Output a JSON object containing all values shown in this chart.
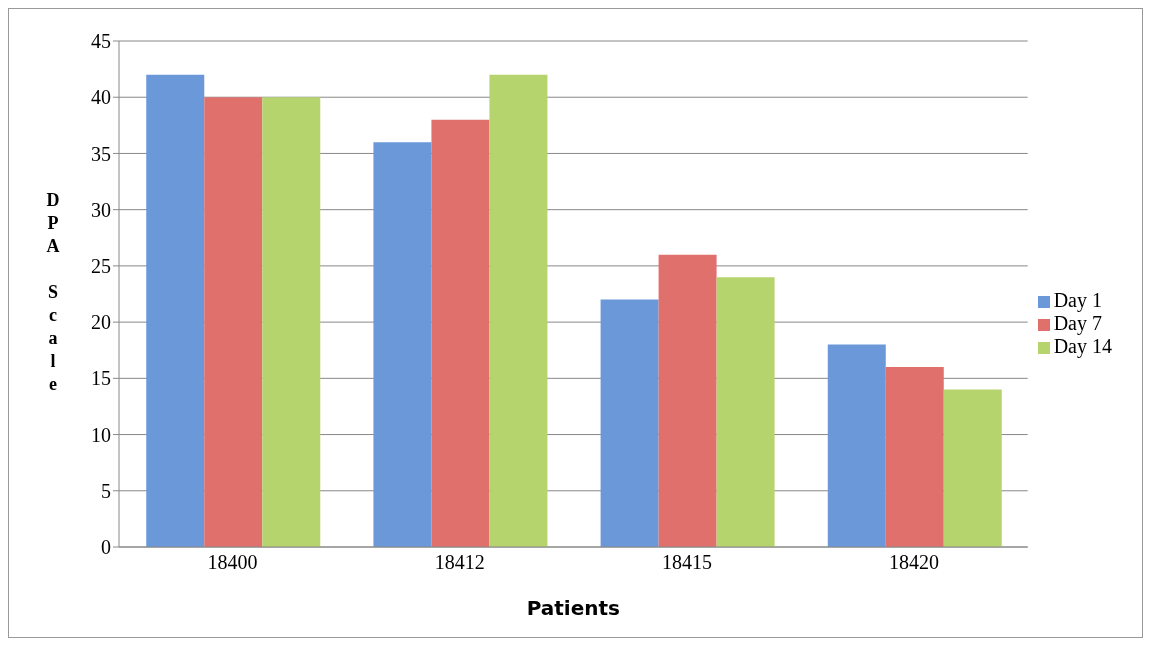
{
  "chart_data": {
    "type": "bar",
    "xlabel": "Patients",
    "ylabel": "DPA Scale",
    "categories": [
      "18400",
      "18412",
      "18415",
      "18420"
    ],
    "series": [
      {
        "name": "Day 1",
        "color": "#6a98d8",
        "values": [
          42,
          36,
          22,
          18
        ]
      },
      {
        "name": "Day 7",
        "color": "#e0706c",
        "values": [
          40,
          38,
          26,
          16
        ]
      },
      {
        "name": "Day 14",
        "color": "#b6d46e",
        "values": [
          40,
          42,
          24,
          14
        ]
      }
    ],
    "ylim": [
      0,
      45
    ],
    "yticks": [
      0,
      5,
      10,
      15,
      20,
      25,
      30,
      35,
      40,
      45
    ],
    "grid": "y",
    "legend": "right"
  }
}
